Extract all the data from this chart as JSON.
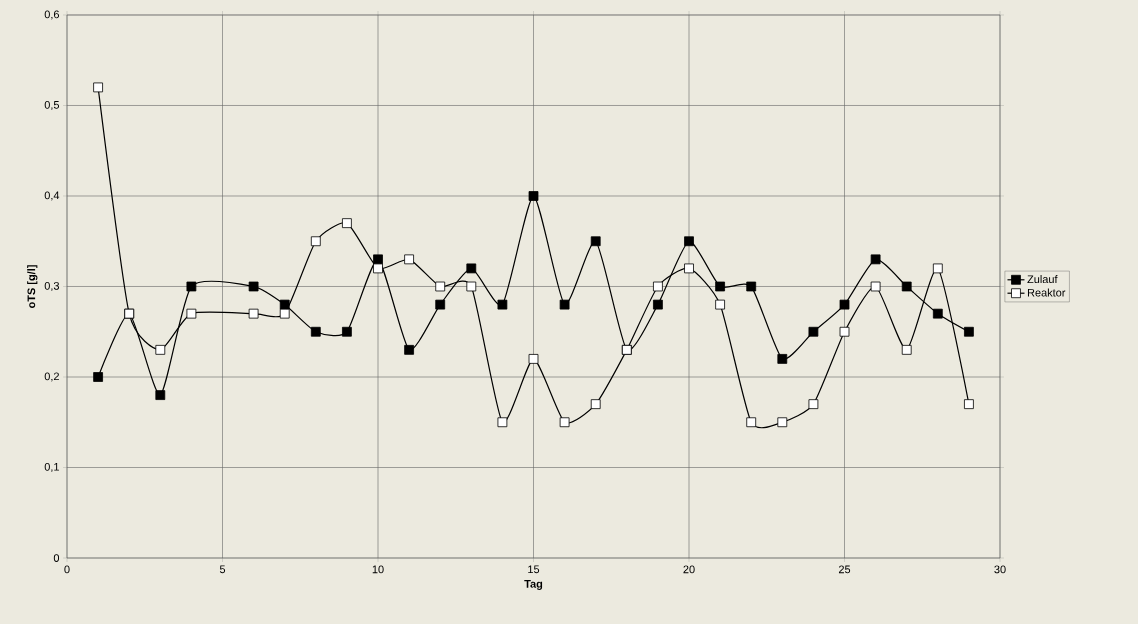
{
  "chart_data": {
    "type": "line",
    "xlabel": "Tag",
    "ylabel": "oTS [g/l]",
    "series": [
      {
        "name": "Zulauf",
        "color": "#000000",
        "x": [
          1,
          2,
          3,
          4,
          6,
          7,
          8,
          9,
          10,
          11,
          12,
          13,
          14,
          15,
          16,
          17,
          18,
          19,
          20,
          21,
          22,
          23,
          24,
          25,
          26,
          27,
          28,
          29
        ],
        "values": [
          0.2,
          0.27,
          0.18,
          0.3,
          0.3,
          0.28,
          0.25,
          0.25,
          0.33,
          0.23,
          0.28,
          0.32,
          0.28,
          0.4,
          0.28,
          0.35,
          0.23,
          0.28,
          0.35,
          0.3,
          0.3,
          0.22,
          0.25,
          0.28,
          0.33,
          0.3,
          0.27,
          0.25
        ]
      },
      {
        "name": "Reaktor",
        "color": "#ffffff",
        "x": [
          1,
          2,
          3,
          4,
          6,
          7,
          8,
          9,
          10,
          11,
          12,
          13,
          14,
          15,
          16,
          17,
          18,
          19,
          20,
          21,
          22,
          23,
          24,
          25,
          26,
          27,
          28,
          29
        ],
        "values": [
          0.52,
          0.27,
          0.23,
          0.27,
          0.27,
          0.27,
          0.35,
          0.37,
          0.32,
          0.33,
          0.3,
          0.3,
          0.15,
          0.22,
          0.15,
          0.17,
          0.23,
          0.3,
          0.32,
          0.28,
          0.15,
          0.15,
          0.17,
          0.25,
          0.3,
          0.23,
          0.32,
          0.17
        ]
      }
    ],
    "xlim": [
      0,
      30
    ],
    "xticks": [
      0,
      5,
      10,
      15,
      20,
      25,
      30
    ],
    "ylim": [
      0,
      0.6
    ],
    "yticks": [
      {
        "value": 0,
        "label": "0"
      },
      {
        "value": 0.1,
        "label": "0,1"
      },
      {
        "value": 0.2,
        "label": "0,2"
      },
      {
        "value": 0.3,
        "label": "0,3"
      },
      {
        "value": 0.4,
        "label": "0,4"
      },
      {
        "value": 0.5,
        "label": "0,5"
      },
      {
        "value": 0.6,
        "label": "0,6"
      }
    ],
    "grid": true,
    "legend": "right",
    "marker": "square",
    "line_style": "solid"
  }
}
